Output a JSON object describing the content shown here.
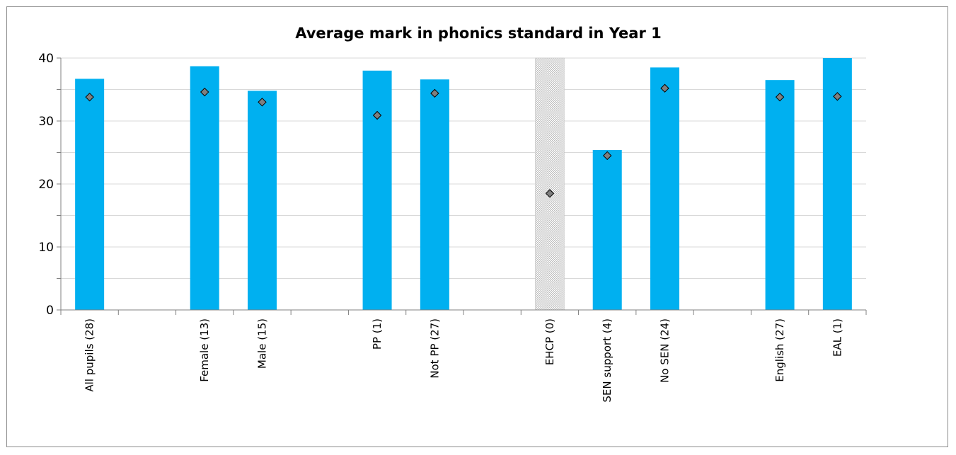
{
  "chart_data": {
    "type": "bar",
    "title": "Average mark in phonics standard in Year 1",
    "xlabel": "",
    "ylabel": "",
    "ylim": [
      0,
      40
    ],
    "yticks": [
      "0",
      "10",
      "20",
      "30",
      "40"
    ],
    "grid": true,
    "categories": [
      "All pupils (28)",
      "",
      "Female (13)",
      "Male (15)",
      "",
      "PP (1)",
      "Not PP (27)",
      "",
      "EHCP (0)",
      "SEN support (4)",
      "No SEN (24)",
      "",
      "English (27)",
      "EAL (1)"
    ],
    "series": [
      {
        "values": [
          36.7,
          null,
          38.7,
          34.8,
          null,
          38.0,
          36.6,
          null,
          null,
          25.4,
          38.5,
          null,
          36.5,
          40.0
        ]
      },
      {
        "values": [
          33.8,
          null,
          34.6,
          33.0,
          null,
          30.9,
          34.4,
          null,
          18.5,
          24.5,
          35.2,
          null,
          33.8,
          33.9
        ]
      }
    ],
    "no_data_categories": [
      "EHCP (0)"
    ],
    "colors": {
      "bar": "#00b0f0",
      "marker": "#7f7f7f",
      "marker_edge": "#000000",
      "grid": "#d9d9d9",
      "axis": "#808080",
      "no_data_fill": "#d9d9d9"
    }
  }
}
